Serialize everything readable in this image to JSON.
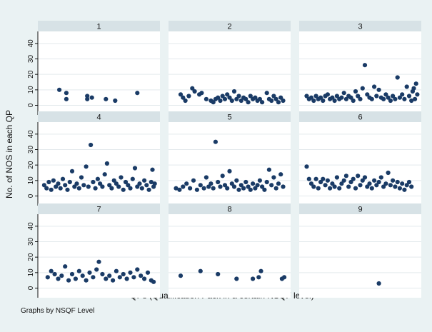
{
  "chart_data": {
    "type": "scatter",
    "ylabel": "No. of NOS in each QP",
    "xlabel": "QPs (Qualification Pack in a certain NSQF level)",
    "note": "Graphs by NSQF Level",
    "yticks": [
      0,
      10,
      20,
      30,
      40
    ],
    "ylim": [
      -3,
      45
    ],
    "xlim": [
      0,
      100
    ],
    "grid": true,
    "marker_color": "#1a3b66",
    "panel_header_color": "#d7e2e6",
    "background_color": "#eaf2f3",
    "panels": [
      {
        "title": "1",
        "points": [
          [
            16,
            10
          ],
          [
            22,
            8
          ],
          [
            22,
            4
          ],
          [
            40,
            6
          ],
          [
            40,
            4
          ],
          [
            44,
            5
          ],
          [
            56,
            4
          ],
          [
            64,
            3
          ],
          [
            83,
            8
          ]
        ]
      },
      {
        "title": "2",
        "points": [
          [
            8,
            7
          ],
          [
            10,
            5
          ],
          [
            12,
            3
          ],
          [
            15,
            6
          ],
          [
            18,
            11
          ],
          [
            20,
            9
          ],
          [
            24,
            7
          ],
          [
            26,
            8
          ],
          [
            30,
            4
          ],
          [
            34,
            3
          ],
          [
            36,
            2
          ],
          [
            38,
            4
          ],
          [
            40,
            5
          ],
          [
            42,
            3
          ],
          [
            44,
            6
          ],
          [
            46,
            4
          ],
          [
            48,
            7
          ],
          [
            50,
            5
          ],
          [
            52,
            3
          ],
          [
            54,
            9
          ],
          [
            56,
            4
          ],
          [
            58,
            6
          ],
          [
            60,
            3
          ],
          [
            62,
            5
          ],
          [
            64,
            4
          ],
          [
            66,
            2
          ],
          [
            68,
            6
          ],
          [
            70,
            4
          ],
          [
            72,
            5
          ],
          [
            74,
            3
          ],
          [
            76,
            4
          ],
          [
            78,
            2
          ],
          [
            82,
            8
          ],
          [
            84,
            4
          ],
          [
            86,
            3
          ],
          [
            88,
            6
          ],
          [
            90,
            4
          ],
          [
            92,
            2
          ],
          [
            94,
            5
          ],
          [
            96,
            3
          ]
        ]
      },
      {
        "title": "3",
        "points": [
          [
            4,
            6
          ],
          [
            6,
            4
          ],
          [
            8,
            5
          ],
          [
            10,
            3
          ],
          [
            12,
            6
          ],
          [
            14,
            4
          ],
          [
            16,
            5
          ],
          [
            18,
            3
          ],
          [
            20,
            6
          ],
          [
            22,
            7
          ],
          [
            24,
            4
          ],
          [
            26,
            5
          ],
          [
            28,
            3
          ],
          [
            30,
            6
          ],
          [
            32,
            4
          ],
          [
            34,
            5
          ],
          [
            36,
            8
          ],
          [
            38,
            4
          ],
          [
            40,
            6
          ],
          [
            42,
            5
          ],
          [
            44,
            3
          ],
          [
            46,
            9
          ],
          [
            48,
            6
          ],
          [
            50,
            4
          ],
          [
            52,
            11
          ],
          [
            54,
            26
          ],
          [
            56,
            7
          ],
          [
            58,
            5
          ],
          [
            60,
            4
          ],
          [
            62,
            12
          ],
          [
            64,
            6
          ],
          [
            66,
            10
          ],
          [
            68,
            5
          ],
          [
            70,
            4
          ],
          [
            72,
            7
          ],
          [
            74,
            5
          ],
          [
            76,
            3
          ],
          [
            78,
            6
          ],
          [
            80,
            4
          ],
          [
            82,
            18
          ],
          [
            84,
            5
          ],
          [
            86,
            7
          ],
          [
            88,
            4
          ],
          [
            90,
            12
          ],
          [
            92,
            6
          ],
          [
            94,
            3
          ],
          [
            95,
            9
          ],
          [
            96,
            11
          ],
          [
            97,
            4
          ],
          [
            98,
            14
          ],
          [
            99,
            7
          ]
        ]
      },
      {
        "title": "4",
        "points": [
          [
            3,
            7
          ],
          [
            5,
            5
          ],
          [
            7,
            9
          ],
          [
            9,
            4
          ],
          [
            11,
            10
          ],
          [
            13,
            6
          ],
          [
            15,
            8
          ],
          [
            17,
            5
          ],
          [
            19,
            11
          ],
          [
            21,
            7
          ],
          [
            23,
            4
          ],
          [
            25,
            9
          ],
          [
            27,
            16
          ],
          [
            29,
            6
          ],
          [
            31,
            8
          ],
          [
            33,
            5
          ],
          [
            35,
            12
          ],
          [
            37,
            7
          ],
          [
            39,
            19
          ],
          [
            41,
            6
          ],
          [
            43,
            33
          ],
          [
            45,
            9
          ],
          [
            47,
            5
          ],
          [
            49,
            11
          ],
          [
            51,
            8
          ],
          [
            53,
            6
          ],
          [
            55,
            14
          ],
          [
            57,
            21
          ],
          [
            59,
            7
          ],
          [
            61,
            5
          ],
          [
            63,
            10
          ],
          [
            65,
            8
          ],
          [
            67,
            6
          ],
          [
            69,
            12
          ],
          [
            71,
            4
          ],
          [
            73,
            9
          ],
          [
            75,
            7
          ],
          [
            77,
            5
          ],
          [
            79,
            11
          ],
          [
            81,
            18
          ],
          [
            83,
            6
          ],
          [
            85,
            8
          ],
          [
            87,
            5
          ],
          [
            89,
            10
          ],
          [
            91,
            7
          ],
          [
            93,
            4
          ],
          [
            95,
            9
          ],
          [
            96,
            17
          ],
          [
            97,
            6
          ],
          [
            98,
            8
          ]
        ]
      },
      {
        "title": "5",
        "points": [
          [
            4,
            5
          ],
          [
            7,
            4
          ],
          [
            10,
            6
          ],
          [
            13,
            8
          ],
          [
            16,
            5
          ],
          [
            19,
            10
          ],
          [
            22,
            4
          ],
          [
            25,
            7
          ],
          [
            28,
            5
          ],
          [
            30,
            12
          ],
          [
            32,
            6
          ],
          [
            34,
            8
          ],
          [
            36,
            5
          ],
          [
            38,
            35
          ],
          [
            40,
            9
          ],
          [
            42,
            6
          ],
          [
            44,
            13
          ],
          [
            46,
            7
          ],
          [
            48,
            5
          ],
          [
            50,
            16
          ],
          [
            52,
            8
          ],
          [
            54,
            6
          ],
          [
            56,
            10
          ],
          [
            58,
            4
          ],
          [
            60,
            7
          ],
          [
            62,
            5
          ],
          [
            64,
            9
          ],
          [
            66,
            6
          ],
          [
            68,
            4
          ],
          [
            70,
            8
          ],
          [
            72,
            5
          ],
          [
            74,
            7
          ],
          [
            76,
            10
          ],
          [
            78,
            6
          ],
          [
            80,
            4
          ],
          [
            82,
            9
          ],
          [
            84,
            17
          ],
          [
            86,
            7
          ],
          [
            88,
            12
          ],
          [
            90,
            5
          ],
          [
            92,
            8
          ],
          [
            94,
            14
          ],
          [
            96,
            6
          ]
        ]
      },
      {
        "title": "6",
        "points": [
          [
            4,
            19
          ],
          [
            6,
            11
          ],
          [
            8,
            8
          ],
          [
            10,
            6
          ],
          [
            12,
            11
          ],
          [
            14,
            5
          ],
          [
            16,
            9
          ],
          [
            18,
            11
          ],
          [
            20,
            7
          ],
          [
            22,
            10
          ],
          [
            24,
            5
          ],
          [
            26,
            8
          ],
          [
            28,
            6
          ],
          [
            30,
            12
          ],
          [
            32,
            5
          ],
          [
            34,
            8
          ],
          [
            36,
            10
          ],
          [
            38,
            13
          ],
          [
            40,
            6
          ],
          [
            42,
            9
          ],
          [
            44,
            11
          ],
          [
            46,
            5
          ],
          [
            48,
            13
          ],
          [
            50,
            7
          ],
          [
            52,
            10
          ],
          [
            54,
            12
          ],
          [
            56,
            6
          ],
          [
            58,
            8
          ],
          [
            60,
            5
          ],
          [
            62,
            10
          ],
          [
            64,
            7
          ],
          [
            66,
            9
          ],
          [
            68,
            12
          ],
          [
            70,
            6
          ],
          [
            72,
            8
          ],
          [
            74,
            15
          ],
          [
            76,
            7
          ],
          [
            78,
            10
          ],
          [
            80,
            6
          ],
          [
            82,
            9
          ],
          [
            84,
            5
          ],
          [
            86,
            8
          ],
          [
            88,
            4
          ],
          [
            90,
            7
          ],
          [
            92,
            9
          ],
          [
            94,
            6
          ]
        ]
      },
      {
        "title": "7",
        "points": [
          [
            6,
            7
          ],
          [
            9,
            11
          ],
          [
            12,
            9
          ],
          [
            15,
            6
          ],
          [
            18,
            8
          ],
          [
            21,
            14
          ],
          [
            24,
            5
          ],
          [
            27,
            9
          ],
          [
            30,
            6
          ],
          [
            33,
            11
          ],
          [
            36,
            8
          ],
          [
            39,
            5
          ],
          [
            42,
            10
          ],
          [
            45,
            7
          ],
          [
            48,
            12
          ],
          [
            50,
            17
          ],
          [
            53,
            9
          ],
          [
            56,
            6
          ],
          [
            59,
            8
          ],
          [
            62,
            5
          ],
          [
            65,
            11
          ],
          [
            68,
            7
          ],
          [
            71,
            9
          ],
          [
            74,
            6
          ],
          [
            77,
            10
          ],
          [
            80,
            7
          ],
          [
            83,
            12
          ],
          [
            86,
            8
          ],
          [
            89,
            6
          ],
          [
            92,
            10
          ],
          [
            95,
            5
          ],
          [
            97,
            4
          ]
        ]
      },
      {
        "title": "8",
        "points": [
          [
            8,
            8
          ],
          [
            25,
            11
          ],
          [
            40,
            9
          ],
          [
            56,
            6
          ],
          [
            70,
            6
          ],
          [
            75,
            7
          ],
          [
            77,
            11
          ],
          [
            95,
            6
          ],
          [
            97,
            7
          ]
        ]
      },
      {
        "title": "9",
        "points": [
          [
            66,
            3
          ]
        ]
      }
    ]
  }
}
